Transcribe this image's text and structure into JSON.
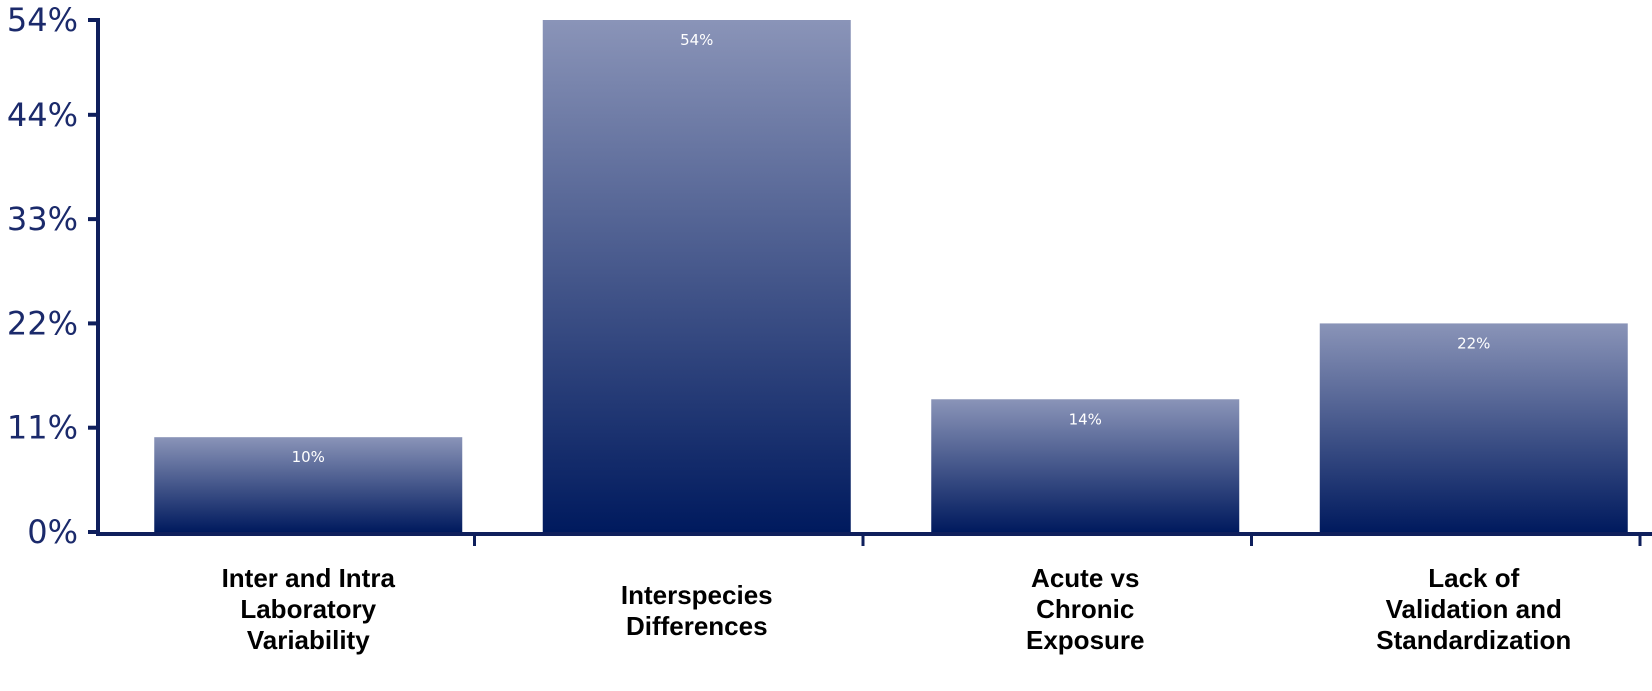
{
  "chart_data": {
    "type": "bar",
    "title": "",
    "xlabel": "",
    "ylabel": "",
    "categories": [
      [
        "Inter and Intra",
        "Laboratory",
        "Variability"
      ],
      [
        "Interspecies",
        "Differences"
      ],
      [
        "Acute vs",
        "Chronic",
        "Exposure"
      ],
      [
        "Lack of",
        "Validation and",
        "Standardization"
      ]
    ],
    "values": [
      10,
      54,
      14,
      22
    ],
    "data_labels": [
      "10%",
      "54%",
      "14%",
      "22%"
    ],
    "yticks": [
      {
        "value": 0,
        "label": "0%"
      },
      {
        "value": 11,
        "label": "11%"
      },
      {
        "value": 22,
        "label": "22%"
      },
      {
        "value": 33,
        "label": "33%"
      },
      {
        "value": 44,
        "label": "44%"
      },
      {
        "value": 54,
        "label": "54%"
      }
    ],
    "ylim": [
      0,
      54
    ],
    "grid": false,
    "legend": "none",
    "colors": {
      "bar_top": "#8a94b8",
      "bar_bottom": "#001a5e",
      "axis": "#0f1f5c",
      "tick_label": "#1b2a6b",
      "data_label": "#ffffff",
      "category_label": "#000000"
    }
  }
}
